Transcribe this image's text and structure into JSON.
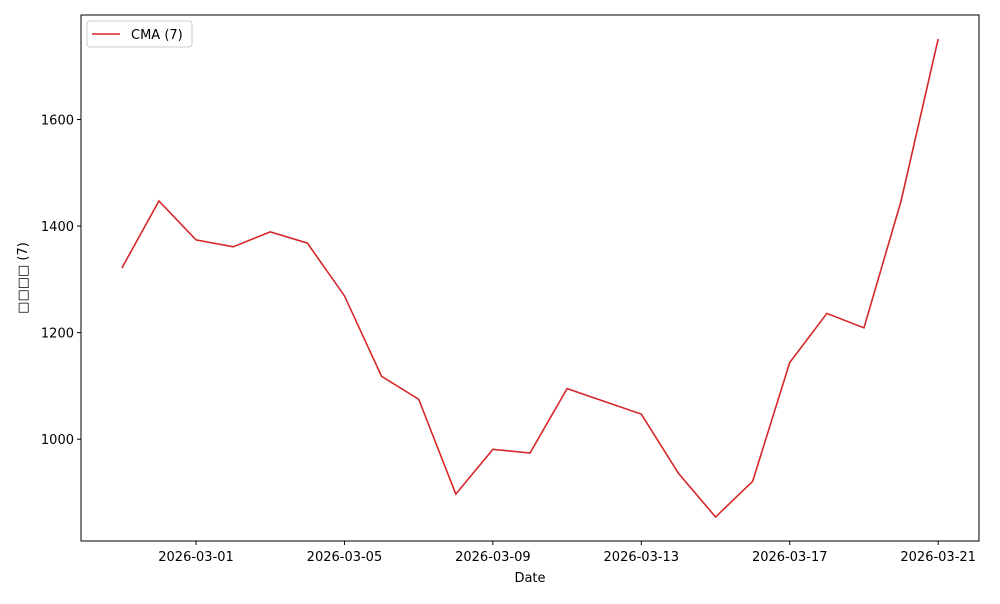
{
  "chart_data": {
    "type": "line",
    "x_label": "Date",
    "y_label": "□□□□ (7)",
    "x": [
      "2026-02-27",
      "2026-02-28",
      "2026-03-01",
      "2026-03-02",
      "2026-03-03",
      "2026-03-04",
      "2026-03-05",
      "2026-03-06",
      "2026-03-07",
      "2026-03-08",
      "2026-03-09",
      "2026-03-10",
      "2026-03-11",
      "2026-03-12",
      "2026-03-13",
      "2026-03-14",
      "2026-03-15",
      "2026-03-16",
      "2026-03-17",
      "2026-03-18",
      "2026-03-19",
      "2026-03-20",
      "2026-03-21"
    ],
    "series": [
      {
        "name": "CMA (7)",
        "color": "#d62728",
        "values": [
          1321,
          1447,
          1374,
          1361,
          1389,
          1368,
          1269,
          1118,
          1075,
          897,
          981,
          974,
          1095,
          1071,
          1047,
          936,
          854,
          921,
          1144,
          1236,
          1209,
          1447,
          1751
        ]
      }
    ],
    "xlim": [
      "2026-02-25T21:36:00Z",
      "2026-03-22T02:24:00Z"
    ],
    "xticks": [
      "2026-03-01",
      "2026-03-05",
      "2026-03-09",
      "2026-03-13",
      "2026-03-17",
      "2026-03-21"
    ],
    "ylim": [
      809,
      1796
    ],
    "yticks": [
      1000,
      1200,
      1400,
      1600
    ],
    "grid": false,
    "legend": "upper left"
  }
}
